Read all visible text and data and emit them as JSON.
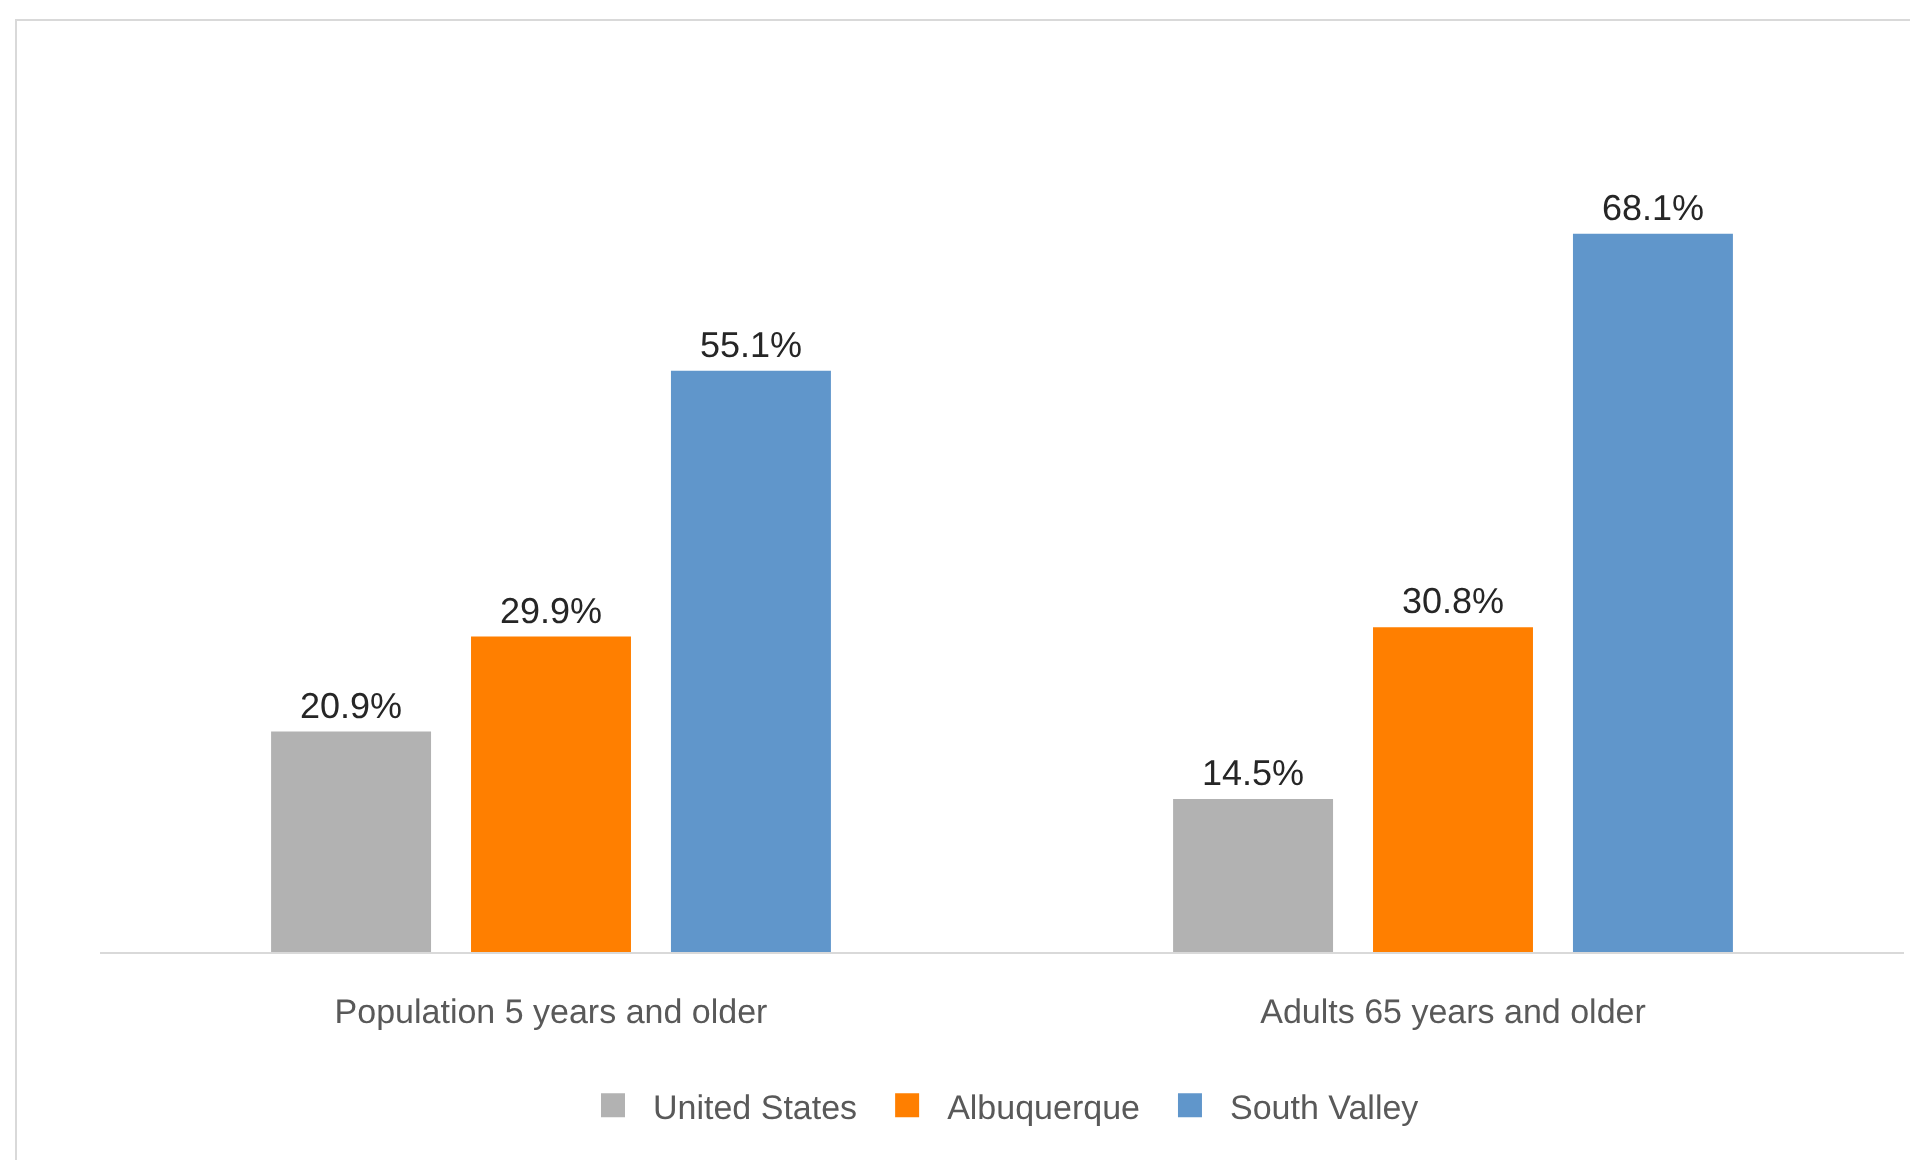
{
  "chart_data": {
    "type": "bar",
    "categories": [
      "Population 5 years and older",
      "Adults 65 years and older"
    ],
    "series": [
      {
        "name": "United States",
        "color": "#b2b2b2",
        "values": [
          20.9,
          14.5
        ],
        "value_labels": [
          "20.9%",
          "14.5%"
        ]
      },
      {
        "name": "Albuquerque",
        "color": "#ff7f00",
        "values": [
          29.9,
          30.8
        ],
        "value_labels": [
          "29.9%",
          "30.8%"
        ]
      },
      {
        "name": "South Valley",
        "color": "#6096cb",
        "values": [
          55.1,
          68.1
        ],
        "value_labels": [
          "55.1%",
          "68.1%"
        ]
      }
    ],
    "tick_labels": "x",
    "legend": "bottom"
  }
}
